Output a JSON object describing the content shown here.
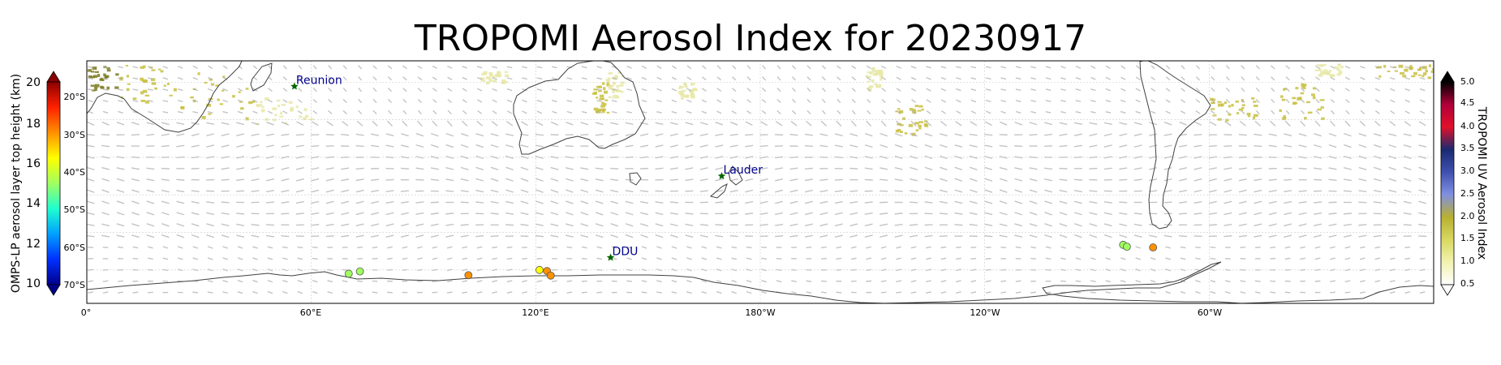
{
  "title": "TROPOMI Aerosol Index for 20230917",
  "longitude_ticks": [
    "0°",
    "60°E",
    "120°E",
    "180°W",
    "120°W",
    "60°W"
  ],
  "latitude_ticks": [
    "20°S",
    "30°S",
    "40°S",
    "50°S",
    "60°S",
    "70°S"
  ],
  "left_colorbar": {
    "label": "OMPS-LP aerosol layer top height (km)",
    "ticks": [
      "20",
      "18",
      "16",
      "14",
      "12",
      "10"
    ],
    "colors": [
      "#8b0000",
      "#ff2000",
      "#ff9000",
      "#ffff00",
      "#a0ff60",
      "#20ffd0",
      "#00a0ff",
      "#0030ff",
      "#00008b"
    ]
  },
  "right_colorbar": {
    "label": "TROPOMI UV Aerosol Index",
    "ticks": [
      "5.0",
      "4.5",
      "4.0",
      "3.5",
      "3.0",
      "2.5",
      "2.0",
      "1.5",
      "1.0",
      "0.5"
    ],
    "colors": [
      "#000000",
      "#b0003a",
      "#e0102a",
      "#1a2a70",
      "#4050b0",
      "#8090e0",
      "#b8b030",
      "#d8d860",
      "#f2f2b0",
      "#ffffff"
    ]
  },
  "stations": [
    {
      "name": "Reunion",
      "lon": 55.5,
      "lat": -21.1
    },
    {
      "name": "Lauder",
      "lon": 169.7,
      "lat": -45.0
    },
    {
      "name": "DDU",
      "lon": 140.0,
      "lat": -66.7
    }
  ],
  "omps_points": [
    {
      "lon": 73,
      "lat": -70.4,
      "km": 15.5
    },
    {
      "lon": 70,
      "lat": -71.0,
      "km": 15.0
    },
    {
      "lon": 121,
      "lat": -70.0,
      "km": 16.6
    },
    {
      "lon": 123,
      "lat": -70.3,
      "km": 17.0
    },
    {
      "lon": 124,
      "lat": -71.5,
      "km": 17.8
    },
    {
      "lon": 102,
      "lat": -71.4,
      "km": 17.2
    },
    {
      "lon": 277,
      "lat": -63.3,
      "km": 15.2
    },
    {
      "lon": 278,
      "lat": -63.8,
      "km": 15.0
    },
    {
      "lon": 285,
      "lat": -64.0,
      "km": 17.1
    }
  ],
  "colors": {
    "aerosol_low": "#e8e8a8",
    "aerosol_mid": "#c8c040",
    "aerosol_high": "#7a7a20",
    "wind_vectors": "#b0b0b0",
    "coastline": "#404040",
    "station_marker": "#006400",
    "station_label": "#00008b"
  }
}
